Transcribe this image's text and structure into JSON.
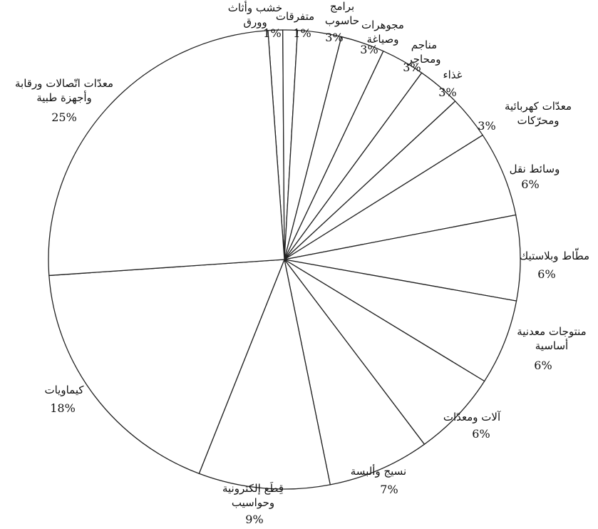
{
  "chart_data": {
    "type": "pie",
    "title": "",
    "start_angle_deg": -94,
    "direction": "clockwise",
    "style": {
      "fill": "#ffffff",
      "stroke": "#222222",
      "text_color": "#111111"
    },
    "slices": [
      {
        "name": "wood-paper",
        "label": [
          "خشب وأثاث",
          "وورق"
        ],
        "percent_label": "1%",
        "value": 1
      },
      {
        "name": "misc",
        "label": [
          "متفرقات"
        ],
        "percent_label": "1%",
        "value": 1
      },
      {
        "name": "software",
        "label": [
          "برامج",
          "حاسوب"
        ],
        "percent_label": "3%",
        "value": 3
      },
      {
        "name": "jewelry",
        "label": [
          "مجوهرات",
          "وصياغة"
        ],
        "percent_label": "3%",
        "value": 3
      },
      {
        "name": "mines",
        "label": [
          "مناجم",
          "ومحاجر"
        ],
        "percent_label": "3%",
        "value": 3
      },
      {
        "name": "food",
        "label": [
          "غذاء"
        ],
        "percent_label": "3%",
        "value": 3
      },
      {
        "name": "electrical",
        "label": [
          "معدّات كهربائية",
          "ومحرّكات"
        ],
        "percent_label": "3%",
        "value": 3
      },
      {
        "name": "transport",
        "label": [
          "وسائط نقل"
        ],
        "percent_label": "6%",
        "value": 6
      },
      {
        "name": "rubber-plastic",
        "label": [
          "مطّاط وبلاستيك"
        ],
        "percent_label": "6%",
        "value": 6
      },
      {
        "name": "metal-products",
        "label": [
          "منتوجات معدنية",
          "أساسية"
        ],
        "percent_label": "6%",
        "value": 6
      },
      {
        "name": "machinery",
        "label": [
          "آلات ومعدّات"
        ],
        "percent_label": "6%",
        "value": 6
      },
      {
        "name": "textiles",
        "label": [
          "نسيج وألبسة"
        ],
        "percent_label": "7%",
        "value": 7
      },
      {
        "name": "electronics",
        "label": [
          "قِطَع إلكترونية",
          "وحواسيب"
        ],
        "percent_label": "9%",
        "value": 9
      },
      {
        "name": "chemicals",
        "label": [
          "كيماويات"
        ],
        "percent_label": "18%",
        "value": 18
      },
      {
        "name": "telecom-medical",
        "label": [
          "معدّات اتّصالات ورقابة",
          "وأجهزة طبية"
        ],
        "percent_label": "25%",
        "value": 25
      }
    ]
  }
}
